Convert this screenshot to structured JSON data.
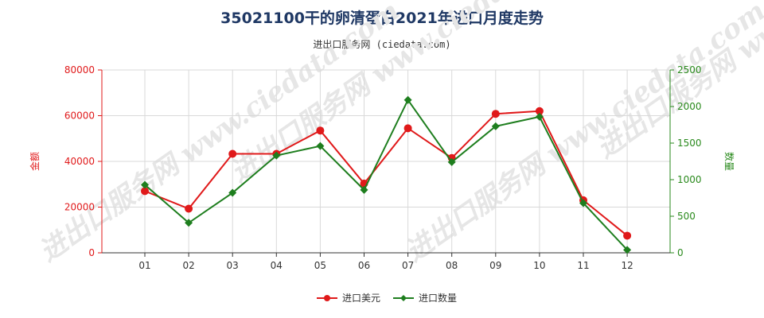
{
  "title": "35021100干的卵清蛋白2021年进口月度走势",
  "subtitle": "进出口服务网 (ciedata.com)",
  "watermark": "进出口服务网 www.ciedata.com",
  "chart_data": {
    "type": "line",
    "categories": [
      "01",
      "02",
      "03",
      "04",
      "05",
      "06",
      "07",
      "08",
      "09",
      "10",
      "11",
      "12"
    ],
    "y_left": {
      "label": "金额",
      "ticks": [
        "0",
        "20000",
        "40000",
        "60000",
        "80000"
      ],
      "range": [
        0,
        80000
      ],
      "color": "#e0191a"
    },
    "y_right": {
      "label": "数量",
      "ticks": [
        "0",
        "500",
        "1000",
        "1500",
        "2000",
        "2500"
      ],
      "range": [
        0,
        2500
      ],
      "color": "#2a8a1d"
    },
    "series": [
      {
        "name": "进口美元",
        "axis": "left",
        "color": "#e0191a",
        "values": [
          27000,
          19300,
          43300,
          43300,
          53500,
          30300,
          54500,
          41500,
          60800,
          62000,
          23000,
          7500
        ]
      },
      {
        "name": "进口数量",
        "axis": "right",
        "color": "#1e7e1e",
        "values": [
          930,
          410,
          820,
          1330,
          1460,
          860,
          2090,
          1240,
          1730,
          1860,
          680,
          40
        ]
      }
    ],
    "grid": true,
    "legend": "bottom-center"
  }
}
